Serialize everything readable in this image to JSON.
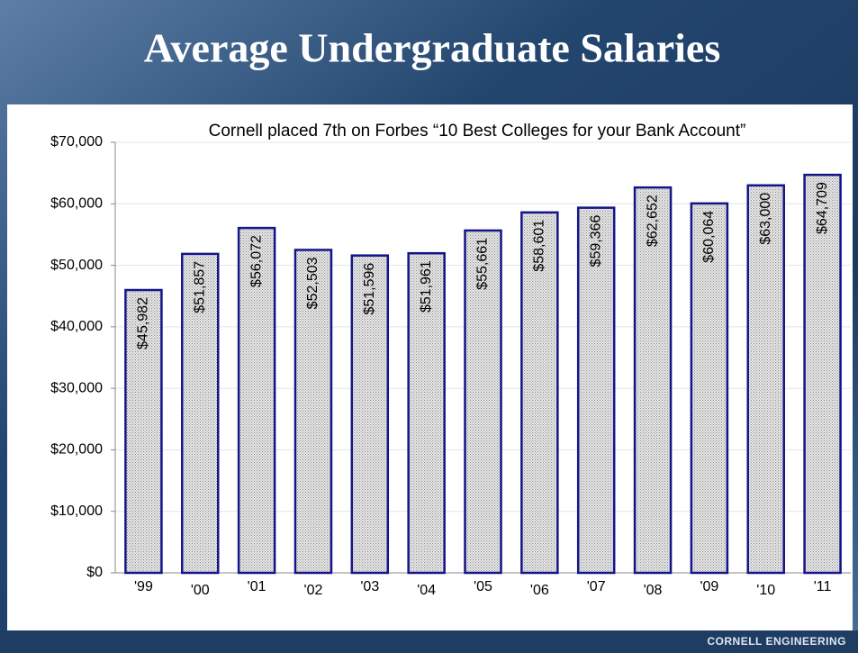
{
  "title": "Average Undergraduate Salaries",
  "footer": "CORNELL ENGINEERING",
  "chart_data": {
    "type": "bar",
    "subtitle": "Cornell placed 7th on Forbes “10 Best Colleges for your Bank Account”",
    "categories": [
      "'99",
      "'00",
      "'01",
      "'02",
      "'03",
      "'04",
      "'05",
      "'06",
      "'07",
      "'08",
      "'09",
      "'10",
      "'11"
    ],
    "values": [
      45982,
      51857,
      56072,
      52503,
      51596,
      51961,
      55661,
      58601,
      59366,
      62652,
      60064,
      63000,
      64709
    ],
    "value_labels": [
      "$45,982",
      "$51,857",
      "$56,072",
      "$52,503",
      "$51,596",
      "$51,961",
      "$55,661",
      "$58,601",
      "$59,366",
      "$62,652",
      "$60,064",
      "$63,000",
      "$64,709"
    ],
    "color": "#c8c8c8",
    "ylim": [
      0,
      70000
    ],
    "yticks": [
      {
        "value": 0,
        "label": "$0"
      },
      {
        "value": 10000,
        "label": "$10,000"
      },
      {
        "value": 20000,
        "label": "$20,000"
      },
      {
        "value": 30000,
        "label": "$30,000"
      },
      {
        "value": 40000,
        "label": "$40,000"
      },
      {
        "value": 50000,
        "label": "$50,000"
      },
      {
        "value": 60000,
        "label": "$60,000"
      },
      {
        "value": 70000,
        "label": "$70,000"
      }
    ],
    "grid": true
  }
}
